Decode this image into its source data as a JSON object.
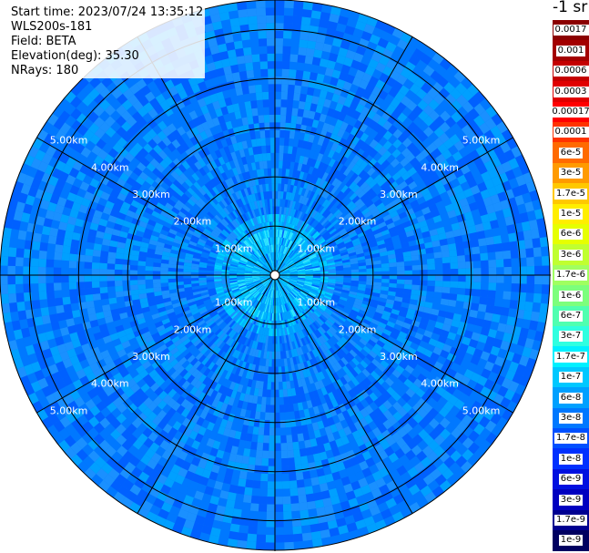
{
  "chart_data": {
    "type": "heatmap",
    "subtype": "polar-ppi",
    "header": {
      "start_time": "Start time: 2023/07/24 13:35:12",
      "instrument": "WLS200s-181",
      "field": "Field: BETA",
      "elevation": "Elevation(deg): 35.30",
      "nrays": "NRays: 180"
    },
    "units_label": "-1 sr",
    "range_rings_km": [
      1,
      2,
      3,
      4,
      5
    ],
    "ring_labels": [
      "1.00km",
      "2.00km",
      "3.00km",
      "4.00km",
      "5.00km"
    ],
    "max_range_km": 5.6,
    "spoke_count": 12,
    "grid": true,
    "legend": [
      {
        "label": "0.0017",
        "color": "#8b0000"
      },
      {
        "label": "0.001",
        "color": "#a30000"
      },
      {
        "label": "0.0006",
        "color": "#c40000"
      },
      {
        "label": "0.0003",
        "color": "#e00000"
      },
      {
        "label": "0.00017",
        "color": "#ff0000"
      },
      {
        "label": "0.0001",
        "color": "#ff3300"
      },
      {
        "label": "6e-5",
        "color": "#ff6a00"
      },
      {
        "label": "3e-5",
        "color": "#ff9a00"
      },
      {
        "label": "1.7e-5",
        "color": "#ffc800"
      },
      {
        "label": "1e-5",
        "color": "#ffee00"
      },
      {
        "label": "6e-6",
        "color": "#e6ff00"
      },
      {
        "label": "3e-6",
        "color": "#c0ff30"
      },
      {
        "label": "1.7e-6",
        "color": "#a0ff60"
      },
      {
        "label": "1e-6",
        "color": "#7cff7c"
      },
      {
        "label": "6e-7",
        "color": "#50ffb0"
      },
      {
        "label": "3e-7",
        "color": "#30ffe0"
      },
      {
        "label": "1.7e-7",
        "color": "#00f0ff"
      },
      {
        "label": "1e-7",
        "color": "#00c8ff"
      },
      {
        "label": "6e-8",
        "color": "#00a0ff"
      },
      {
        "label": "3e-8",
        "color": "#0078ff"
      },
      {
        "label": "1.7e-8",
        "color": "#0050ff"
      },
      {
        "label": "1e-8",
        "color": "#0030ff"
      },
      {
        "label": "6e-9",
        "color": "#0010e0"
      },
      {
        "label": "3e-9",
        "color": "#0000c0"
      },
      {
        "label": "1.7e-9",
        "color": "#000090"
      },
      {
        "label": "1e-9",
        "color": "#000060"
      }
    ]
  }
}
